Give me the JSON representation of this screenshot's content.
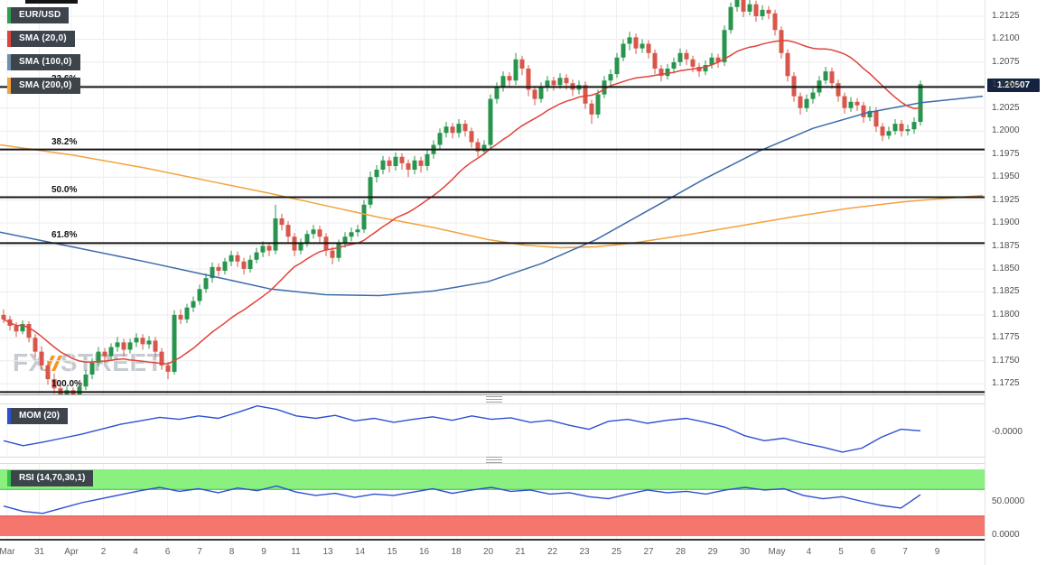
{
  "legend": {
    "items": [
      {
        "label": "EUR/USD",
        "color": "#2f9e4f"
      },
      {
        "label": "SMA (20,0)",
        "color": "#e0433a"
      },
      {
        "label": "SMA (100,0)",
        "color": "#6f8fae"
      },
      {
        "label": "SMA (200,0)",
        "color": "#f2a33c"
      }
    ]
  },
  "watermark": {
    "fx": "FX",
    "street": "STREET"
  },
  "chart_data": [
    {
      "type": "candlestick",
      "name": "EUR/USD",
      "price_scale": 10000,
      "current_price": "1.20507",
      "ylim": [
        1.1713,
        1.2143
      ],
      "grid": true,
      "y_ticks": [
        "1.2125",
        "1.2100",
        "1.2075",
        "1.2050",
        "1.2025",
        "1.2000",
        "1.1975",
        "1.1950",
        "1.1925",
        "1.1900",
        "1.1875",
        "1.1850",
        "1.1825",
        "1.1800",
        "1.1775",
        "1.1750",
        "1.1725"
      ],
      "x_tick_labels": [
        "Mar",
        "31",
        "Apr",
        "2",
        "4",
        "6",
        "7",
        "8",
        "9",
        "11",
        "13",
        "14",
        "15",
        "16",
        "18",
        "20",
        "21",
        "22",
        "23",
        "25",
        "27",
        "28",
        "29",
        "30",
        "May",
        "4",
        "5",
        "6",
        "7",
        "9"
      ],
      "fib_levels": [
        {
          "label": "23.6%",
          "price": 1.2048
        },
        {
          "label": "38.2%",
          "price": 1.198
        },
        {
          "label": "50.0%",
          "price": 1.1928
        },
        {
          "label": "61.8%",
          "price": 1.1878
        },
        {
          "label": "100.0%",
          "price": 1.1716
        }
      ],
      "colors": {
        "up": "#27954d",
        "down": "#d8564a",
        "sma20": "#e0433a",
        "sma100": "#3c6ba8",
        "sma200": "#f2a33c",
        "fib": "#141414"
      },
      "candles": [
        [
          11800,
          11806,
          11791,
          11795
        ],
        [
          11795,
          11799,
          11783,
          11788
        ],
        [
          11788,
          11792,
          11776,
          11782
        ],
        [
          11782,
          11794,
          11779,
          11790
        ],
        [
          11790,
          11793,
          11770,
          11775
        ],
        [
          11775,
          11779,
          11754,
          11760
        ],
        [
          11760,
          11766,
          11740,
          11745
        ],
        [
          11745,
          11750,
          11724,
          11730
        ],
        [
          11730,
          11736,
          11714,
          11720
        ],
        [
          11720,
          11726,
          11703,
          11712
        ],
        [
          11712,
          11722,
          11706,
          11718
        ],
        [
          11718,
          11721,
          11702,
          11710
        ],
        [
          11710,
          11726,
          11705,
          11722
        ],
        [
          11722,
          11740,
          11718,
          11735
        ],
        [
          11735,
          11753,
          11730,
          11748
        ],
        [
          11748,
          11765,
          11744,
          11760
        ],
        [
          11760,
          11764,
          11748,
          11755
        ],
        [
          11755,
          11769,
          11751,
          11765
        ],
        [
          11765,
          11776,
          11760,
          11770
        ],
        [
          11770,
          11774,
          11755,
          11762
        ],
        [
          11762,
          11774,
          11758,
          11770
        ],
        [
          11770,
          11780,
          11765,
          11775
        ],
        [
          11775,
          11779,
          11762,
          11768
        ],
        [
          11768,
          11777,
          11763,
          11772
        ],
        [
          11772,
          11776,
          11754,
          11760
        ],
        [
          11760,
          11764,
          11740,
          11745
        ],
        [
          11745,
          11749,
          11730,
          11738
        ],
        [
          11738,
          11805,
          11735,
          11800
        ],
        [
          11800,
          11806,
          11790,
          11795
        ],
        [
          11795,
          11812,
          11791,
          11808
        ],
        [
          11808,
          11820,
          11803,
          11815
        ],
        [
          11815,
          11833,
          11811,
          11828
        ],
        [
          11828,
          11845,
          11824,
          11840
        ],
        [
          11840,
          11857,
          11835,
          11852
        ],
        [
          11852,
          11856,
          11842,
          11848
        ],
        [
          11848,
          11862,
          11844,
          11858
        ],
        [
          11858,
          11870,
          11853,
          11865
        ],
        [
          11865,
          11869,
          11852,
          11858
        ],
        [
          11858,
          11862,
          11844,
          11850
        ],
        [
          11850,
          11865,
          11846,
          11860
        ],
        [
          11860,
          11873,
          11856,
          11868
        ],
        [
          11868,
          11880,
          11863,
          11875
        ],
        [
          11875,
          11879,
          11864,
          11870
        ],
        [
          11870,
          11920,
          11866,
          11905
        ],
        [
          11905,
          11910,
          11892,
          11898
        ],
        [
          11898,
          11902,
          11879,
          11885
        ],
        [
          11885,
          11889,
          11864,
          11870
        ],
        [
          11870,
          11883,
          11866,
          11878
        ],
        [
          11878,
          11892,
          11874,
          11888
        ],
        [
          11888,
          11898,
          11883,
          11893
        ],
        [
          11893,
          11897,
          11879,
          11885
        ],
        [
          11885,
          11889,
          11864,
          11870
        ],
        [
          11870,
          11874,
          11855,
          11862
        ],
        [
          11862,
          11882,
          11858,
          11878
        ],
        [
          11878,
          11890,
          11873,
          11885
        ],
        [
          11885,
          11895,
          11880,
          11890
        ],
        [
          11890,
          11898,
          11885,
          11893
        ],
        [
          11893,
          11925,
          11889,
          11920
        ],
        [
          11920,
          11956,
          11916,
          11950
        ],
        [
          11950,
          11963,
          11944,
          11958
        ],
        [
          11958,
          11973,
          11953,
          11968
        ],
        [
          11968,
          11972,
          11955,
          11962
        ],
        [
          11962,
          11977,
          11957,
          11972
        ],
        [
          11972,
          11976,
          11958,
          11965
        ],
        [
          11965,
          11969,
          11950,
          11958
        ],
        [
          11958,
          11973,
          11953,
          11968
        ],
        [
          11968,
          11972,
          11955,
          11962
        ],
        [
          11962,
          11980,
          11957,
          11975
        ],
        [
          11975,
          11990,
          11970,
          11985
        ],
        [
          11985,
          12003,
          11980,
          11998
        ],
        [
          11998,
          12010,
          11993,
          12005
        ],
        [
          12005,
          12009,
          11992,
          11998
        ],
        [
          11998,
          12013,
          11993,
          12008
        ],
        [
          12008,
          12012,
          11994,
          12000
        ],
        [
          12000,
          12004,
          11982,
          11988
        ],
        [
          11988,
          11992,
          11972,
          11978
        ],
        [
          11978,
          11990,
          11974,
          11985
        ],
        [
          11985,
          12040,
          11981,
          12035
        ],
        [
          12035,
          12053,
          12030,
          12048
        ],
        [
          12048,
          12065,
          12043,
          12060
        ],
        [
          12060,
          12064,
          12048,
          12055
        ],
        [
          12055,
          12085,
          12050,
          12078
        ],
        [
          12078,
          12082,
          12061,
          12068
        ],
        [
          12068,
          12072,
          12038,
          12045
        ],
        [
          12045,
          12049,
          12028,
          12035
        ],
        [
          12035,
          12053,
          12031,
          12048
        ],
        [
          12048,
          12060,
          12043,
          12055
        ],
        [
          12055,
          12059,
          12044,
          12050
        ],
        [
          12050,
          12063,
          12046,
          12058
        ],
        [
          12058,
          12062,
          12045,
          12052
        ],
        [
          12052,
          12056,
          12038,
          12045
        ],
        [
          12045,
          12055,
          12040,
          12050
        ],
        [
          12050,
          12054,
          12024,
          12030
        ],
        [
          12030,
          12034,
          12008,
          12018
        ],
        [
          12018,
          12045,
          12014,
          12040
        ],
        [
          12040,
          12060,
          12036,
          12055
        ],
        [
          12055,
          12067,
          12050,
          12062
        ],
        [
          12062,
          12085,
          12058,
          12080
        ],
        [
          12080,
          12100,
          12076,
          12095
        ],
        [
          12095,
          12108,
          12088,
          12102
        ],
        [
          12102,
          12106,
          12084,
          12090
        ],
        [
          12090,
          12100,
          12085,
          12095
        ],
        [
          12095,
          12099,
          12079,
          12085
        ],
        [
          12085,
          12089,
          12062,
          12068
        ],
        [
          12068,
          12072,
          12054,
          12060
        ],
        [
          12060,
          12073,
          12056,
          12068
        ],
        [
          12068,
          12080,
          12063,
          12075
        ],
        [
          12075,
          12090,
          12071,
          12085
        ],
        [
          12085,
          12089,
          12072,
          12078
        ],
        [
          12078,
          12082,
          12064,
          12070
        ],
        [
          12070,
          12074,
          12059,
          12065
        ],
        [
          12065,
          12077,
          12061,
          12072
        ],
        [
          12072,
          12085,
          12068,
          12080
        ],
        [
          12080,
          12084,
          12069,
          12075
        ],
        [
          12075,
          12115,
          12071,
          12110
        ],
        [
          12110,
          12140,
          12106,
          12135
        ],
        [
          12135,
          12157,
          12130,
          12148
        ],
        [
          12148,
          12152,
          12124,
          12130
        ],
        [
          12130,
          12143,
          12126,
          12138
        ],
        [
          12138,
          12142,
          12119,
          12125
        ],
        [
          12125,
          12137,
          12121,
          12132
        ],
        [
          12132,
          12136,
          12122,
          12128
        ],
        [
          12128,
          12132,
          12104,
          12110
        ],
        [
          12110,
          12114,
          12079,
          12085
        ],
        [
          12085,
          12089,
          12054,
          12060
        ],
        [
          12060,
          12064,
          12032,
          12038
        ],
        [
          12038,
          12042,
          12018,
          12025
        ],
        [
          12025,
          12040,
          12021,
          12035
        ],
        [
          12035,
          12047,
          12030,
          12042
        ],
        [
          12042,
          12060,
          12038,
          12055
        ],
        [
          12055,
          12070,
          12051,
          12065
        ],
        [
          12065,
          12069,
          12046,
          12052
        ],
        [
          12052,
          12056,
          12032,
          12038
        ],
        [
          12038,
          12042,
          12019,
          12025
        ],
        [
          12025,
          12037,
          12021,
          12032
        ],
        [
          12032,
          12036,
          12022,
          12028
        ],
        [
          12028,
          12032,
          12009,
          12015
        ],
        [
          12015,
          12027,
          12011,
          12022
        ],
        [
          12022,
          12026,
          11999,
          12005
        ],
        [
          12005,
          12009,
          11989,
          11995
        ],
        [
          11995,
          12005,
          11991,
          12000
        ],
        [
          12000,
          12013,
          11996,
          12008
        ],
        [
          12008,
          12012,
          11994,
          12000
        ],
        [
          12000,
          12007,
          11995,
          12002
        ],
        [
          12002,
          12015,
          11997,
          12010
        ],
        [
          12010,
          12055,
          12006,
          12051
        ]
      ],
      "sma100": [
        [
          0,
          11890
        ],
        [
          80,
          11874
        ],
        [
          160,
          11858
        ],
        [
          240,
          11841
        ],
        [
          300,
          11828
        ],
        [
          360,
          11822
        ],
        [
          420,
          11821
        ],
        [
          480,
          11826
        ],
        [
          540,
          11836
        ],
        [
          600,
          11856
        ],
        [
          660,
          11882
        ],
        [
          720,
          11915
        ],
        [
          780,
          11948
        ],
        [
          840,
          11978
        ],
        [
          900,
          12003
        ],
        [
          960,
          12020
        ],
        [
          1020,
          12031
        ],
        [
          1088,
          12038
        ]
      ],
      "sma200": [
        [
          0,
          11985
        ],
        [
          80,
          11974
        ],
        [
          160,
          11960
        ],
        [
          240,
          11944
        ],
        [
          300,
          11932
        ],
        [
          360,
          11919
        ],
        [
          420,
          11906
        ],
        [
          480,
          11895
        ],
        [
          540,
          11882
        ],
        [
          580,
          11876
        ],
        [
          620,
          11873
        ],
        [
          660,
          11874
        ],
        [
          700,
          11878
        ],
        [
          760,
          11887
        ],
        [
          820,
          11897
        ],
        [
          880,
          11907
        ],
        [
          940,
          11916
        ],
        [
          1000,
          11923
        ],
        [
          1088,
          11930
        ]
      ]
    },
    {
      "type": "line",
      "name": "MOM (20)",
      "color": "#2d4fd1",
      "unit": 0.0001,
      "ylim": [
        -0.0047,
        0.0058
      ],
      "axis_label": "-0.0000",
      "values": [
        -15,
        -25,
        -18,
        -10,
        -2,
        8,
        18,
        25,
        32,
        28,
        35,
        30,
        42,
        55,
        48,
        35,
        30,
        36,
        25,
        30,
        22,
        28,
        33,
        26,
        35,
        28,
        31,
        22,
        26,
        16,
        8,
        24,
        28,
        20,
        26,
        30,
        22,
        12,
        -5,
        -15,
        -10,
        -20,
        -28,
        -38,
        -30,
        -8,
        8,
        5
      ]
    },
    {
      "type": "line",
      "name": "RSI (14,70,30,1)",
      "color": "#2d4fd1",
      "ylim": [
        0,
        100
      ],
      "axis_labels": [
        "50.0000",
        "0.0000"
      ],
      "bands": [
        {
          "range": [
            70,
            100
          ],
          "edge_at": 70,
          "color": "#8af080",
          "edge": "#3db53d"
        },
        {
          "range": [
            0,
            30
          ],
          "edge_at": 30,
          "color": "#f4766c",
          "edge": "#d84848"
        }
      ],
      "values": [
        45,
        37,
        34,
        42,
        50,
        56,
        62,
        68,
        73,
        67,
        71,
        65,
        72,
        68,
        75,
        66,
        61,
        64,
        58,
        63,
        61,
        66,
        71,
        64,
        69,
        73,
        67,
        69,
        63,
        65,
        59,
        56,
        63,
        69,
        65,
        67,
        63,
        69,
        73,
        69,
        71,
        61,
        56,
        59,
        52,
        46,
        42,
        62
      ]
    }
  ]
}
